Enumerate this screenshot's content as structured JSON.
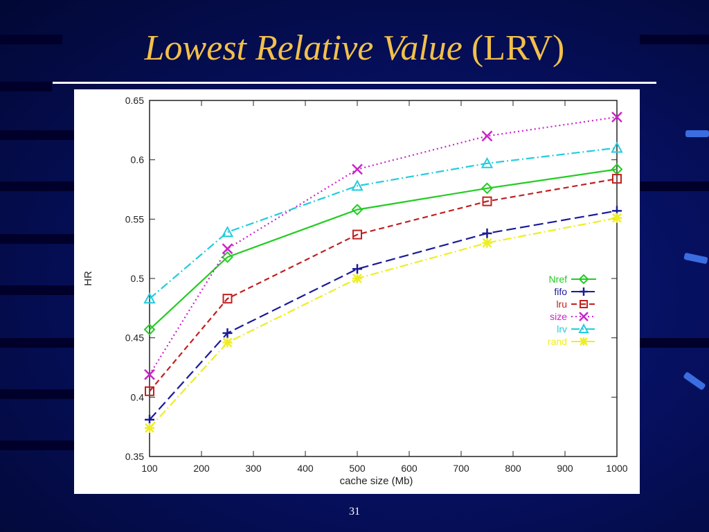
{
  "slide": {
    "title_italic": "Lowest Relative Value",
    "title_plain": "(LRV)",
    "page_number": "31"
  },
  "colors": {
    "title": "#f2c04a",
    "background": "#061060"
  },
  "chart_data": {
    "type": "line",
    "xlabel": "cache size (Mb)",
    "ylabel": "HR",
    "xlim": [
      100,
      1000
    ],
    "ylim": [
      0.35,
      0.65
    ],
    "x_ticks": [
      "100",
      "200",
      "300",
      "400",
      "500",
      "600",
      "700",
      "800",
      "900",
      "1000"
    ],
    "y_ticks": [
      "0.35",
      "0.4",
      "0.45",
      "0.5",
      "0.55",
      "0.6",
      "0.65"
    ],
    "x": [
      100,
      250,
      500,
      750,
      1000
    ],
    "legend_position": "right",
    "grid": false,
    "series": [
      {
        "name": "Nref",
        "color": "#22cc22",
        "dash": "solid",
        "marker": "diamond",
        "values": [
          0.457,
          0.518,
          0.558,
          0.576,
          0.592
        ]
      },
      {
        "name": "fifo",
        "color": "#1a1a99",
        "dash": "long-dash",
        "marker": "plus",
        "values": [
          0.381,
          0.454,
          0.508,
          0.538,
          0.557
        ]
      },
      {
        "name": "lru",
        "color": "#c02020",
        "dash": "dash",
        "marker": "square",
        "values": [
          0.405,
          0.483,
          0.537,
          0.565,
          0.584
        ]
      },
      {
        "name": "size",
        "color": "#cc22cc",
        "dash": "dot",
        "marker": "cross",
        "values": [
          0.419,
          0.525,
          0.592,
          0.62,
          0.636
        ]
      },
      {
        "name": "lrv",
        "color": "#22ccdd",
        "dash": "dash-dot",
        "marker": "triangle",
        "values": [
          0.483,
          0.539,
          0.578,
          0.597,
          0.61
        ]
      },
      {
        "name": "rand",
        "color": "#eeee22",
        "dash": "dash-dot",
        "marker": "star",
        "values": [
          0.374,
          0.446,
          0.5,
          0.53,
          0.551
        ]
      }
    ]
  }
}
